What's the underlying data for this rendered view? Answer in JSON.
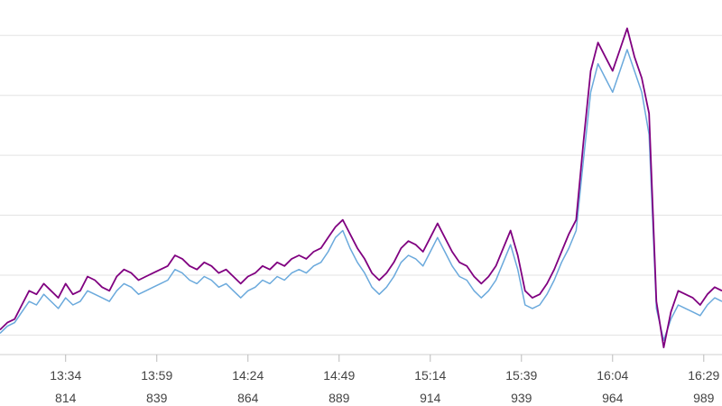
{
  "chart_data": {
    "type": "line",
    "title": "",
    "xlabel": "",
    "ylabel": "",
    "grid": "horizontal",
    "legend": "none",
    "x_ticks": [
      {
        "x": 814,
        "time": "13:34",
        "num": "814"
      },
      {
        "x": 839,
        "time": "13:59",
        "num": "839"
      },
      {
        "x": 864,
        "time": "14:24",
        "num": "864"
      },
      {
        "x": 889,
        "time": "14:49",
        "num": "889"
      },
      {
        "x": 914,
        "time": "15:14",
        "num": "914"
      },
      {
        "x": 939,
        "time": "15:39",
        "num": "939"
      },
      {
        "x": 964,
        "time": "16:04",
        "num": "964"
      },
      {
        "x": 989,
        "time": "16:29",
        "num": "989"
      }
    ],
    "xlim": [
      796,
      994
    ],
    "ylim": [
      0,
      100
    ],
    "gridlines": [
      5.5,
      22.4,
      39.3,
      56.2,
      73.1,
      90.0
    ],
    "series": [
      {
        "color": "#800080",
        "points": [
          [
            796,
            7
          ],
          [
            798,
            9
          ],
          [
            800,
            10
          ],
          [
            802,
            14
          ],
          [
            804,
            18
          ],
          [
            806,
            17
          ],
          [
            808,
            20
          ],
          [
            810,
            18
          ],
          [
            812,
            16
          ],
          [
            814,
            20
          ],
          [
            816,
            17
          ],
          [
            818,
            18
          ],
          [
            820,
            22
          ],
          [
            822,
            21
          ],
          [
            824,
            19
          ],
          [
            826,
            18
          ],
          [
            828,
            22
          ],
          [
            830,
            24
          ],
          [
            832,
            23
          ],
          [
            834,
            21
          ],
          [
            836,
            22
          ],
          [
            838,
            23
          ],
          [
            840,
            24
          ],
          [
            842,
            25
          ],
          [
            844,
            28
          ],
          [
            846,
            27
          ],
          [
            848,
            25
          ],
          [
            850,
            24
          ],
          [
            852,
            26
          ],
          [
            854,
            25
          ],
          [
            856,
            23
          ],
          [
            858,
            24
          ],
          [
            860,
            22
          ],
          [
            862,
            20
          ],
          [
            864,
            22
          ],
          [
            866,
            23
          ],
          [
            868,
            25
          ],
          [
            870,
            24
          ],
          [
            872,
            26
          ],
          [
            874,
            25
          ],
          [
            876,
            27
          ],
          [
            878,
            28
          ],
          [
            880,
            27
          ],
          [
            882,
            29
          ],
          [
            884,
            30
          ],
          [
            886,
            33
          ],
          [
            888,
            36
          ],
          [
            890,
            38
          ],
          [
            892,
            34
          ],
          [
            894,
            30
          ],
          [
            896,
            27
          ],
          [
            898,
            23
          ],
          [
            900,
            21
          ],
          [
            902,
            23
          ],
          [
            904,
            26
          ],
          [
            906,
            30
          ],
          [
            908,
            32
          ],
          [
            910,
            31
          ],
          [
            912,
            29
          ],
          [
            914,
            33
          ],
          [
            916,
            37
          ],
          [
            918,
            33
          ],
          [
            920,
            29
          ],
          [
            922,
            26
          ],
          [
            924,
            25
          ],
          [
            926,
            22
          ],
          [
            928,
            20
          ],
          [
            930,
            22
          ],
          [
            932,
            25
          ],
          [
            934,
            30
          ],
          [
            936,
            35
          ],
          [
            938,
            28
          ],
          [
            940,
            18
          ],
          [
            942,
            16
          ],
          [
            944,
            17
          ],
          [
            946,
            20
          ],
          [
            948,
            24
          ],
          [
            950,
            29
          ],
          [
            952,
            34
          ],
          [
            954,
            38
          ],
          [
            956,
            60
          ],
          [
            958,
            80
          ],
          [
            960,
            88
          ],
          [
            962,
            84
          ],
          [
            964,
            80
          ],
          [
            966,
            86
          ],
          [
            968,
            92
          ],
          [
            970,
            84
          ],
          [
            972,
            78
          ],
          [
            974,
            68
          ],
          [
            976,
            15
          ],
          [
            978,
            2
          ],
          [
            980,
            12
          ],
          [
            982,
            18
          ],
          [
            984,
            17
          ],
          [
            986,
            16
          ],
          [
            988,
            14
          ],
          [
            990,
            17
          ],
          [
            992,
            19
          ],
          [
            994,
            18
          ]
        ]
      },
      {
        "color": "#6aa9dc",
        "points": [
          [
            796,
            6
          ],
          [
            798,
            8
          ],
          [
            800,
            9
          ],
          [
            802,
            12
          ],
          [
            804,
            15
          ],
          [
            806,
            14
          ],
          [
            808,
            17
          ],
          [
            810,
            15
          ],
          [
            812,
            13
          ],
          [
            814,
            16
          ],
          [
            816,
            14
          ],
          [
            818,
            15
          ],
          [
            820,
            18
          ],
          [
            822,
            17
          ],
          [
            824,
            16
          ],
          [
            826,
            15
          ],
          [
            828,
            18
          ],
          [
            830,
            20
          ],
          [
            832,
            19
          ],
          [
            834,
            17
          ],
          [
            836,
            18
          ],
          [
            838,
            19
          ],
          [
            840,
            20
          ],
          [
            842,
            21
          ],
          [
            844,
            24
          ],
          [
            846,
            23
          ],
          [
            848,
            21
          ],
          [
            850,
            20
          ],
          [
            852,
            22
          ],
          [
            854,
            21
          ],
          [
            856,
            19
          ],
          [
            858,
            20
          ],
          [
            860,
            18
          ],
          [
            862,
            16
          ],
          [
            864,
            18
          ],
          [
            866,
            19
          ],
          [
            868,
            21
          ],
          [
            870,
            20
          ],
          [
            872,
            22
          ],
          [
            874,
            21
          ],
          [
            876,
            23
          ],
          [
            878,
            24
          ],
          [
            880,
            23
          ],
          [
            882,
            25
          ],
          [
            884,
            26
          ],
          [
            886,
            29
          ],
          [
            888,
            33
          ],
          [
            890,
            35
          ],
          [
            892,
            30
          ],
          [
            894,
            26
          ],
          [
            896,
            23
          ],
          [
            898,
            19
          ],
          [
            900,
            17
          ],
          [
            902,
            19
          ],
          [
            904,
            22
          ],
          [
            906,
            26
          ],
          [
            908,
            28
          ],
          [
            910,
            27
          ],
          [
            912,
            25
          ],
          [
            914,
            29
          ],
          [
            916,
            33
          ],
          [
            918,
            29
          ],
          [
            920,
            25
          ],
          [
            922,
            22
          ],
          [
            924,
            21
          ],
          [
            926,
            18
          ],
          [
            928,
            16
          ],
          [
            930,
            18
          ],
          [
            932,
            21
          ],
          [
            934,
            26
          ],
          [
            936,
            31
          ],
          [
            938,
            24
          ],
          [
            940,
            14
          ],
          [
            942,
            13
          ],
          [
            944,
            14
          ],
          [
            946,
            17
          ],
          [
            948,
            21
          ],
          [
            950,
            26
          ],
          [
            952,
            30
          ],
          [
            954,
            35
          ],
          [
            956,
            55
          ],
          [
            958,
            74
          ],
          [
            960,
            82
          ],
          [
            962,
            78
          ],
          [
            964,
            74
          ],
          [
            966,
            80
          ],
          [
            968,
            86
          ],
          [
            970,
            80
          ],
          [
            972,
            74
          ],
          [
            974,
            62
          ],
          [
            976,
            13
          ],
          [
            978,
            4
          ],
          [
            980,
            10
          ],
          [
            982,
            14
          ],
          [
            984,
            13
          ],
          [
            986,
            12
          ],
          [
            988,
            11
          ],
          [
            990,
            14
          ],
          [
            992,
            16
          ],
          [
            994,
            15
          ]
        ]
      }
    ]
  }
}
